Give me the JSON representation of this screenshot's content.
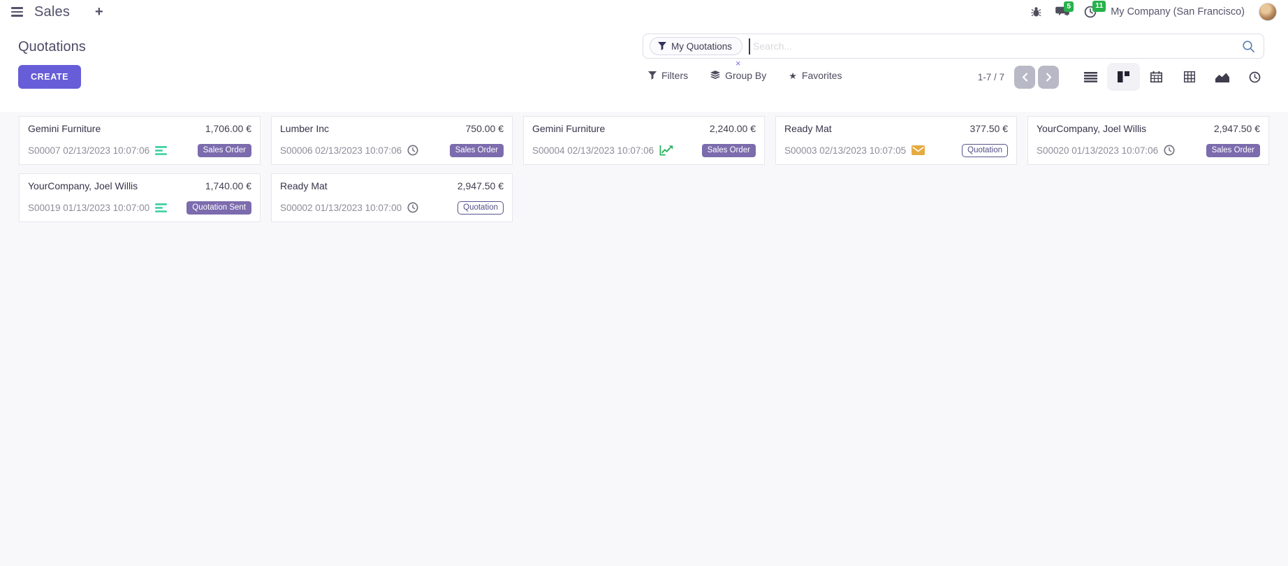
{
  "navbar": {
    "app_name": "Sales",
    "add_label": "+",
    "messages_badge": "5",
    "activities_badge": "11",
    "company_name": "My Company (San Francisco)"
  },
  "control_panel": {
    "title": "Quotations",
    "create_label": "CREATE",
    "filters_label": "Filters",
    "group_by_label": "Group By",
    "favorites_label": "Favorites",
    "pager_text": "1-7 / 7"
  },
  "search": {
    "facet_label": "My Quotations",
    "facet_remove": "×",
    "placeholder": "Search..."
  },
  "view_switcher": {
    "views": [
      "list",
      "kanban",
      "calendar",
      "pivot",
      "graph",
      "activity"
    ],
    "active_view": "kanban"
  },
  "cards": [
    {
      "customer": "Gemini Furniture",
      "amount": "1,706.00 €",
      "reference": "S00007 02/13/2023 10:07:06",
      "activity_icon": "list-lines",
      "status": "Sales Order",
      "badge_style": "filled"
    },
    {
      "customer": "Lumber Inc",
      "amount": "750.00 €",
      "reference": "S00006 02/13/2023 10:07:06",
      "activity_icon": "clock",
      "status": "Sales Order",
      "badge_style": "filled"
    },
    {
      "customer": "Gemini Furniture",
      "amount": "2,240.00 €",
      "reference": "S00004 02/13/2023 10:07:06",
      "activity_icon": "chart-up",
      "status": "Sales Order",
      "badge_style": "filled"
    },
    {
      "customer": "Ready Mat",
      "amount": "377.50 €",
      "reference": "S00003 02/13/2023 10:07:05",
      "activity_icon": "envelope",
      "status": "Quotation",
      "badge_style": "outline"
    },
    {
      "customer": "YourCompany, Joel Willis",
      "amount": "2,947.50 €",
      "reference": "S00020 01/13/2023 10:07:06",
      "activity_icon": "clock",
      "status": "Sales Order",
      "badge_style": "filled"
    },
    {
      "customer": "YourCompany, Joel Willis",
      "amount": "1,740.00 €",
      "reference": "S00019 01/13/2023 10:07:00",
      "activity_icon": "list-lines",
      "status": "Quotation Sent",
      "badge_style": "filled"
    },
    {
      "customer": "Ready Mat",
      "amount": "2,947.50 €",
      "reference": "S00002 01/13/2023 10:07:00",
      "activity_icon": "clock",
      "status": "Quotation",
      "badge_style": "outline"
    }
  ],
  "icons": {
    "hamburger-menu": "three-bars",
    "plus": "+",
    "bug": "bug-silhouette",
    "messages": "speech-bubbles",
    "activities": "clock",
    "filter-funnel": "funnel",
    "group-by": "stacked-layers",
    "favorites": "★",
    "search": "magnifier",
    "pager-prev": "‹",
    "pager-next": "›",
    "view-list": "horizontal-bars",
    "view-kanban": "kanban-blocks",
    "view-calendar": "calendar-grid",
    "view-pivot": "pivot-table-grid",
    "view-graph": "area-chart",
    "view-activity": "clock",
    "list-lines": "teal-stacked-lines",
    "clock": "gray-clock-outline",
    "chart-up": "green-rising-line-arrow",
    "envelope": "amber-filled-envelope"
  },
  "colors": {
    "accent_button": "#675dd8",
    "badge_filled_bg": "#7c6bad",
    "badge_outline": "#524f87",
    "notification_green": "#26b24c",
    "activity_teal": "#3fd0a2",
    "activity_green": "#23b25b",
    "activity_amber": "#e5ab41",
    "kanban_background": "#f8f8fb"
  }
}
